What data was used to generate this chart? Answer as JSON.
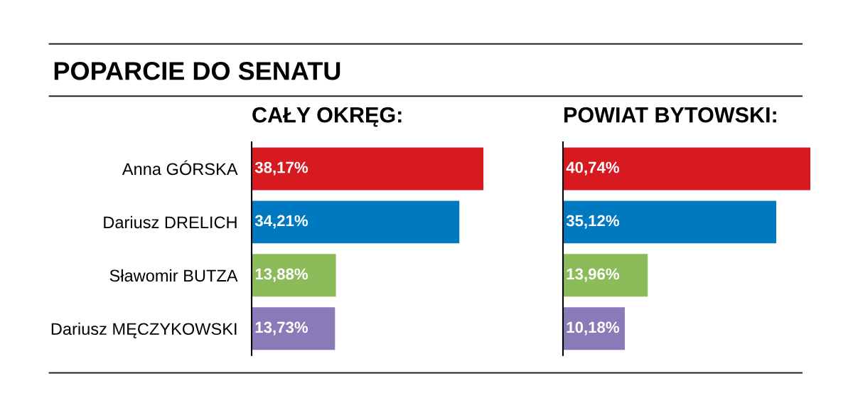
{
  "chart_data": [
    {
      "type": "bar",
      "orientation": "horizontal",
      "title": "POPARCIE DO SENATU",
      "subtitle": "CAŁY OKRĘG:",
      "categories": [
        "Anna GÓRSKA",
        "Dariusz DRELICH",
        "Sławomir BUTZA",
        "Dariusz MĘCZYKOWSKI"
      ],
      "values": [
        38.17,
        34.21,
        13.88,
        13.73
      ],
      "colors": [
        "#d71920",
        "#0079c1",
        "#8cbb5a",
        "#8a7bb8"
      ],
      "value_labels": [
        "38,17%",
        "34,21%",
        "13,88%",
        "13,73%"
      ],
      "tick_labels": "y",
      "grid": false,
      "legend": false
    },
    {
      "type": "bar",
      "orientation": "horizontal",
      "title": "POWIAT BYTOWSKI:",
      "categories": [
        null,
        null,
        null,
        null
      ],
      "values": [
        40.74,
        35.12,
        13.96,
        10.18
      ],
      "colors": [
        "#d71920",
        "#0079c1",
        "#8cbb5a",
        "#8a7bb8"
      ],
      "value_labels": [
        "40,74%",
        "35,12%",
        "13,96%",
        "10,18%"
      ],
      "tick_labels": false,
      "grid": false,
      "legend": false
    }
  ]
}
